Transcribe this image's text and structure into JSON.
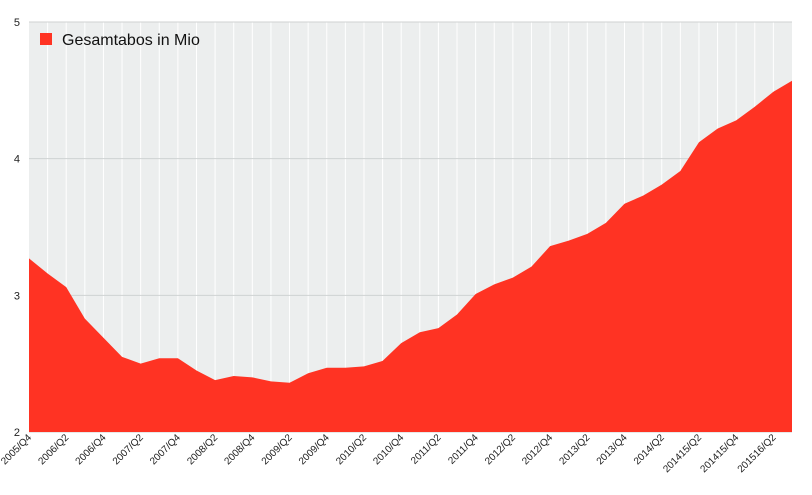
{
  "chart_data": {
    "type": "area",
    "colors": {
      "series": "#ff3323",
      "plot_bg": "#eceeee",
      "grid": "#ffffff"
    },
    "legend_position": "top-left",
    "grid": true,
    "ylim": [
      2,
      5
    ],
    "y_ticks": [
      "2",
      "3",
      "4",
      "5"
    ],
    "x_tick_labels": [
      "2005/Q4",
      "2006/Q2",
      "2006/Q4",
      "2007/Q2",
      "2007/Q4",
      "2008/Q2",
      "2008/Q4",
      "2009/Q2",
      "2009/Q4",
      "2010/Q2",
      "2010/Q4",
      "2011/Q2",
      "2011/Q4",
      "2012/Q2",
      "2012/Q4",
      "2013/Q2",
      "2013/Q4",
      "2014/Q2",
      "201415/Q2",
      "201415/Q4",
      "201516/Q2"
    ],
    "series": [
      {
        "name": "Gesamtabos in Mio",
        "values": [
          3.27,
          3.16,
          3.06,
          2.83,
          2.69,
          2.55,
          2.5,
          2.54,
          2.54,
          2.45,
          2.38,
          2.41,
          2.4,
          2.37,
          2.36,
          2.43,
          2.47,
          2.47,
          2.48,
          2.52,
          2.65,
          2.73,
          2.76,
          2.86,
          3.01,
          3.08,
          3.13,
          3.21,
          3.36,
          3.4,
          3.45,
          3.53,
          3.67,
          3.73,
          3.81,
          3.91,
          4.12,
          4.22,
          4.28,
          4.38,
          4.49,
          4.57
        ]
      }
    ]
  }
}
